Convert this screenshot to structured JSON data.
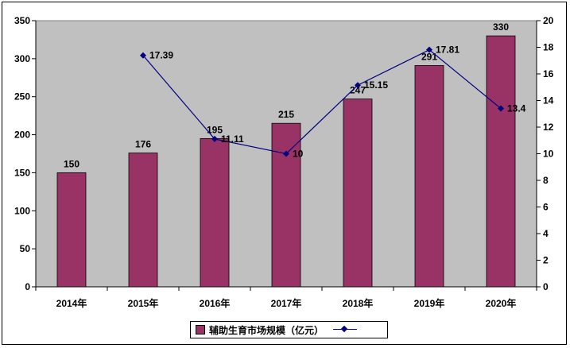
{
  "chart_data": {
    "type": "bar",
    "categories": [
      "2014年",
      "2015年",
      "2016年",
      "2017年",
      "2018年",
      "2019年",
      "2020年"
    ],
    "series": [
      {
        "name": "辅助生育市场规模（亿元）",
        "type": "bar",
        "axis": "left",
        "values": [
          150,
          176,
          195,
          215,
          247,
          291,
          330
        ],
        "labels": [
          "150",
          "176",
          "195",
          "215",
          "247",
          "291",
          "330"
        ],
        "color": "#993366"
      },
      {
        "name": "",
        "type": "line",
        "axis": "right",
        "values": [
          null,
          17.39,
          11.11,
          10,
          15.15,
          17.81,
          13.4
        ],
        "labels": [
          "",
          "17.39",
          "11.11",
          "10",
          "15.15",
          "17.81",
          "13.4"
        ],
        "color": "#000080"
      }
    ],
    "y_left": {
      "min": 0,
      "max": 350,
      "ticks": [
        "0",
        "50",
        "100",
        "150",
        "200",
        "250",
        "300",
        "350"
      ]
    },
    "y_right": {
      "min": 0,
      "max": 20,
      "ticks": [
        "0",
        "2",
        "4",
        "6",
        "8",
        "10",
        "12",
        "14",
        "16",
        "18",
        "20"
      ]
    },
    "plot_background": "#c0c0c0",
    "grid": false,
    "legend_position": "bottom"
  },
  "legend": {
    "bar_label": "辅助生育市场规模（亿元）"
  }
}
